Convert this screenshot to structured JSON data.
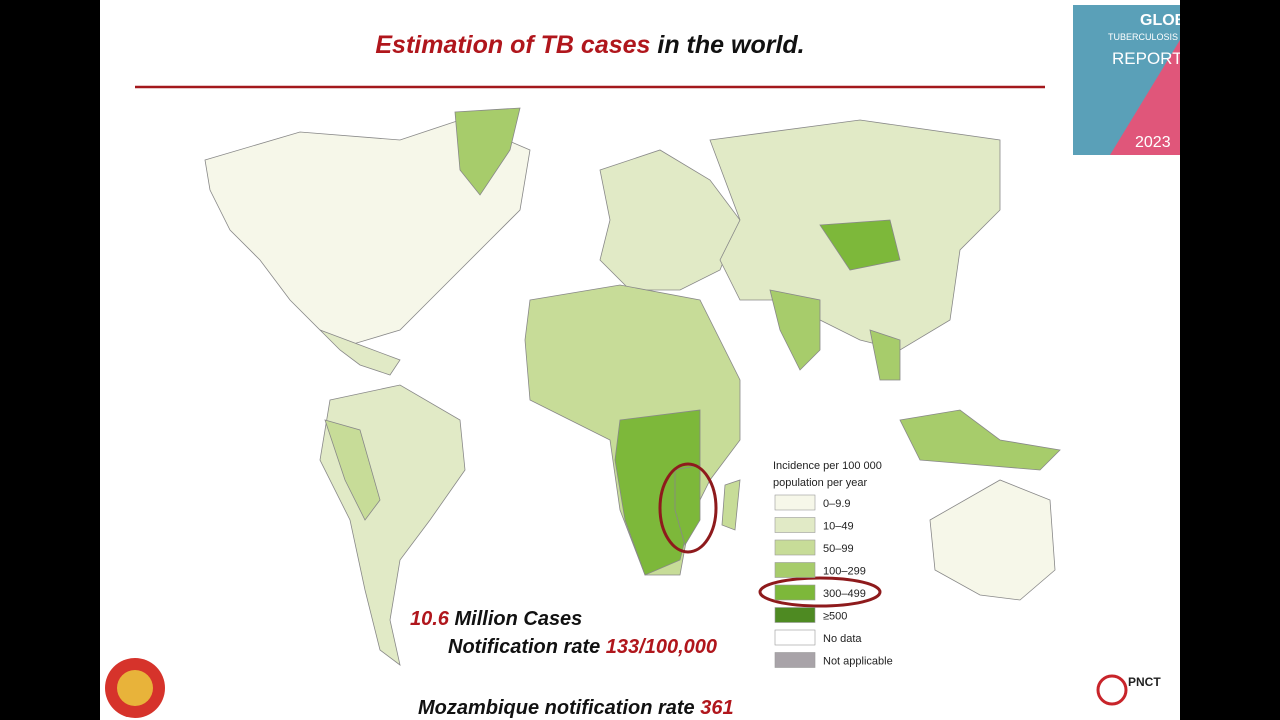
{
  "title": {
    "highlight": "Estimation of TB cases",
    "rest": " in the world."
  },
  "report_cover": {
    "line1": "GLOBA",
    "line2": "TUBERCULOSIS",
    "line3": "REPORT",
    "year": "2023"
  },
  "legend": {
    "title_line1": "Incidence per 100 000",
    "title_line2": "population per year",
    "items": [
      {
        "label": "0–9.9",
        "color": "#f6f7e9"
      },
      {
        "label": "10–49",
        "color": "#e1eac6"
      },
      {
        "label": "50–99",
        "color": "#c7dc98"
      },
      {
        "label": "100–299",
        "color": "#a7cc6b"
      },
      {
        "label": "300–499",
        "color": "#7db83a"
      },
      {
        "label": "≥500",
        "color": "#4e8a22"
      },
      {
        "label": "No data",
        "color": "#ffffff"
      },
      {
        "label": "Not applicable",
        "color": "#a8a3a8"
      }
    ]
  },
  "stats": {
    "cases_value": "10.6",
    "cases_text": " Million Cases",
    "rate_text": "Notification rate ",
    "rate_value": "133/100,000",
    "moz_text": "Mozambique notification rate ",
    "moz_value": "361"
  },
  "logo": {
    "pnct": "PNCT"
  }
}
